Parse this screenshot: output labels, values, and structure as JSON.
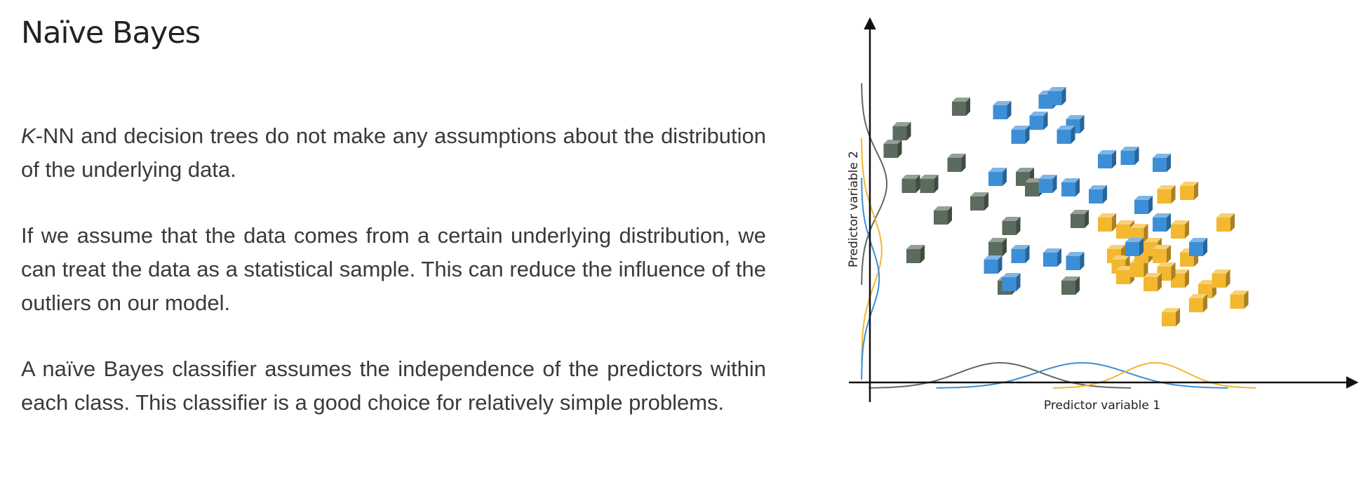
{
  "slide": {
    "title": "Naïve Bayes",
    "paragraphs": [
      {
        "lead_italic": "K",
        "text": "-NN and decision trees do not make any assumptions about the distribution of the underlying data."
      },
      {
        "lead_italic": "",
        "text": "If we assume that the data comes from a certain underlying distribution, we can treat the data as a statistical sample. This can reduce the influence of the outliers on our model."
      },
      {
        "lead_italic": "",
        "text": "A naïve Bayes classifier assumes the independence of the predictors within each class. This classifier is a good choice for relatively simple problems."
      }
    ]
  },
  "figure": {
    "xlabel": "Predictor variable 1",
    "ylabel": "Predictor variable 2",
    "colors": {
      "green": "#5b6b5d",
      "yellow": "#f3b730",
      "blue": "#3c8fd6",
      "axis": "#111111"
    },
    "classes": [
      {
        "color": "green",
        "points": [
          [
            28,
            26
          ],
          [
            26,
            37
          ],
          [
            14,
            46
          ],
          [
            44,
            45
          ],
          [
            8,
            35
          ],
          [
            42,
            26
          ],
          [
            3,
            65
          ],
          [
            17,
            61
          ],
          [
            32,
            57
          ],
          [
            29,
            43
          ],
          [
            22,
            50
          ],
          [
            34,
            54
          ],
          [
            11,
            55
          ],
          [
            7,
            55
          ],
          [
            5,
            70
          ],
          [
            18,
            77
          ]
        ]
      },
      {
        "color": "yellow",
        "points": [
          [
            52,
            35
          ],
          [
            53,
            32
          ],
          [
            54,
            29
          ],
          [
            57,
            31
          ],
          [
            58,
            35
          ],
          [
            60,
            37
          ],
          [
            62,
            35
          ],
          [
            68,
            34
          ],
          [
            72,
            25
          ],
          [
            66,
            28
          ],
          [
            63,
            30
          ],
          [
            60,
            27
          ],
          [
            64,
            17
          ],
          [
            70,
            21
          ],
          [
            79,
            22
          ],
          [
            75,
            28
          ],
          [
            66,
            42
          ],
          [
            50,
            44
          ],
          [
            54,
            42
          ],
          [
            57,
            41
          ],
          [
            76,
            44
          ],
          [
            68,
            53
          ],
          [
            63,
            52
          ]
        ]
      },
      {
        "color": "blue",
        "points": [
          [
            37,
            79
          ],
          [
            39,
            80
          ],
          [
            27,
            76
          ],
          [
            35,
            73
          ],
          [
            43,
            72
          ],
          [
            31,
            69
          ],
          [
            41,
            69
          ],
          [
            50,
            62
          ],
          [
            55,
            63
          ],
          [
            62,
            61
          ],
          [
            26,
            57
          ],
          [
            37,
            55
          ],
          [
            42,
            54
          ],
          [
            48,
            52
          ],
          [
            58,
            49
          ],
          [
            62,
            44
          ],
          [
            70,
            37
          ],
          [
            56,
            37
          ],
          [
            43,
            33
          ],
          [
            38,
            34
          ],
          [
            31,
            35
          ],
          [
            29,
            27
          ],
          [
            25,
            32
          ]
        ]
      }
    ],
    "x_density": [
      {
        "color": "green",
        "mean": 27,
        "sd": 9,
        "scale": 1.0
      },
      {
        "color": "blue",
        "mean": 45,
        "sd": 10,
        "scale": 1.0
      },
      {
        "color": "yellow",
        "mean": 61,
        "sd": 7,
        "scale": 1.0
      }
    ],
    "y_density": [
      {
        "color": "green",
        "mean": 55,
        "sd": 9,
        "scale": 1.0
      },
      {
        "color": "yellow",
        "mean": 36,
        "sd": 10,
        "scale": 0.8
      },
      {
        "color": "blue",
        "mean": 28,
        "sd": 9,
        "scale": 0.7
      }
    ]
  }
}
